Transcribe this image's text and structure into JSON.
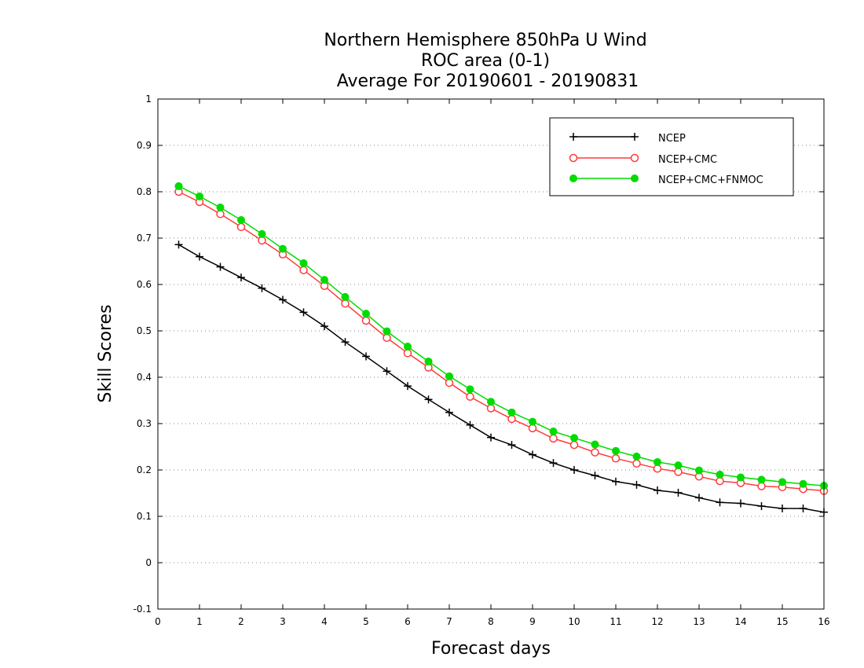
{
  "chart_data": {
    "type": "line",
    "title": [
      "Northern Hemisphere 850hPa U Wind",
      "ROC area (0-1)",
      "Average For 20190601 - 20190831"
    ],
    "xlabel": "Forecast days",
    "ylabel": "Skill Scores",
    "xlim": [
      0,
      16
    ],
    "ylim": [
      -0.1,
      1
    ],
    "x_ticks": [
      "0",
      "1",
      "2",
      "3",
      "4",
      "5",
      "6",
      "7",
      "8",
      "9",
      "10",
      "11",
      "12",
      "13",
      "14",
      "15",
      "16"
    ],
    "y_ticks": [
      "-0.1",
      "0",
      "0.1",
      "0.2",
      "0.3",
      "0.4",
      "0.5",
      "0.6",
      "0.7",
      "0.8",
      "0.9",
      "1"
    ],
    "grid": "horizontal dotted",
    "legend_position": "top-right",
    "x": [
      0.5,
      1,
      1.5,
      2,
      2.5,
      3,
      3.5,
      4,
      4.5,
      5,
      5.5,
      6,
      6.5,
      7,
      7.5,
      8,
      8.5,
      9,
      9.5,
      10,
      10.5,
      11,
      11.5,
      12,
      12.5,
      13,
      13.5,
      14,
      14.5,
      15,
      15.5,
      16
    ],
    "series": [
      {
        "name": "NCEP",
        "color": "#000000",
        "marker": "plus",
        "values": [
          0.686,
          0.66,
          0.638,
          0.615,
          0.592,
          0.567,
          0.54,
          0.51,
          0.476,
          0.445,
          0.413,
          0.381,
          0.352,
          0.324,
          0.297,
          0.27,
          0.254,
          0.233,
          0.215,
          0.2,
          0.188,
          0.175,
          0.168,
          0.156,
          0.151,
          0.14,
          0.13,
          0.128,
          0.122,
          0.117,
          0.117,
          0.109
        ]
      },
      {
        "name": "NCEP+CMC",
        "color": "#ff3c3c",
        "marker": "open-circle",
        "values": [
          0.8,
          0.778,
          0.752,
          0.724,
          0.695,
          0.665,
          0.631,
          0.597,
          0.559,
          0.522,
          0.485,
          0.452,
          0.421,
          0.388,
          0.358,
          0.333,
          0.31,
          0.29,
          0.268,
          0.254,
          0.238,
          0.225,
          0.214,
          0.203,
          0.196,
          0.186,
          0.176,
          0.172,
          0.165,
          0.163,
          0.159,
          0.155
        ]
      },
      {
        "name": "NCEP+CMC+FNMOC",
        "color": "#00dc00",
        "marker": "filled-circle",
        "values": [
          0.812,
          0.79,
          0.766,
          0.739,
          0.709,
          0.677,
          0.646,
          0.61,
          0.573,
          0.537,
          0.499,
          0.466,
          0.434,
          0.402,
          0.374,
          0.347,
          0.324,
          0.304,
          0.283,
          0.269,
          0.255,
          0.241,
          0.229,
          0.217,
          0.21,
          0.199,
          0.19,
          0.184,
          0.179,
          0.174,
          0.17,
          0.166
        ]
      }
    ]
  }
}
